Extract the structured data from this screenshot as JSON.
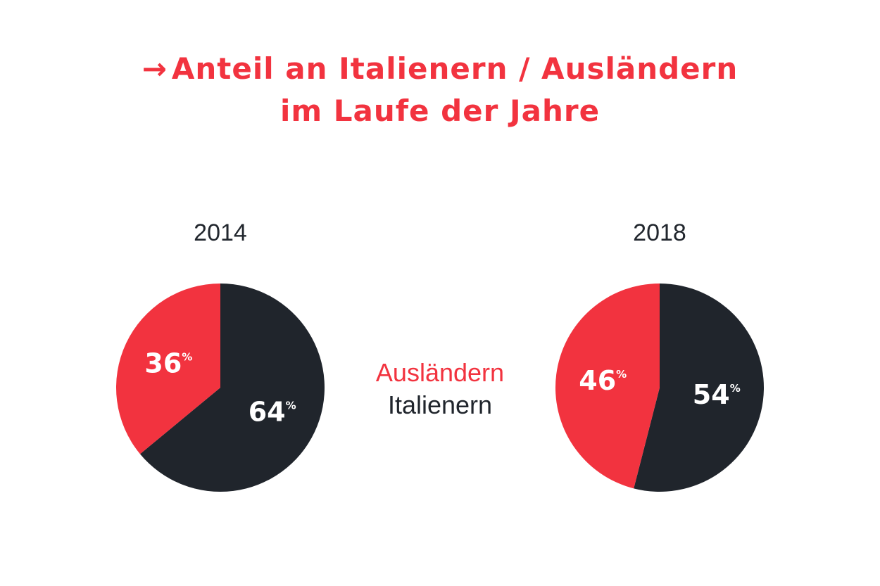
{
  "title": {
    "arrow": "→",
    "line1": "Anteil an Italienern / Ausländern",
    "line2": "im Laufe der Jahre"
  },
  "colors": {
    "accent": "#f2333f",
    "dark": "#20252c",
    "text": "#22272e"
  },
  "legend": [
    {
      "label": "Ausländern",
      "color": "#f2333f"
    },
    {
      "label": "Italienern",
      "color": "#20252c"
    }
  ],
  "chart_data": [
    {
      "type": "pie",
      "title": "2014",
      "slices": [
        {
          "label": "Italienern",
          "value": 64,
          "display": "64",
          "color": "#20252c"
        },
        {
          "label": "Ausländern",
          "value": 36,
          "display": "36",
          "color": "#f2333f"
        }
      ],
      "unit": "%"
    },
    {
      "type": "pie",
      "title": "2018",
      "slices": [
        {
          "label": "Italienern",
          "value": 54,
          "display": "54",
          "color": "#20252c"
        },
        {
          "label": "Ausländern",
          "value": 46,
          "display": "46",
          "color": "#f2333f"
        }
      ],
      "unit": "%"
    }
  ]
}
